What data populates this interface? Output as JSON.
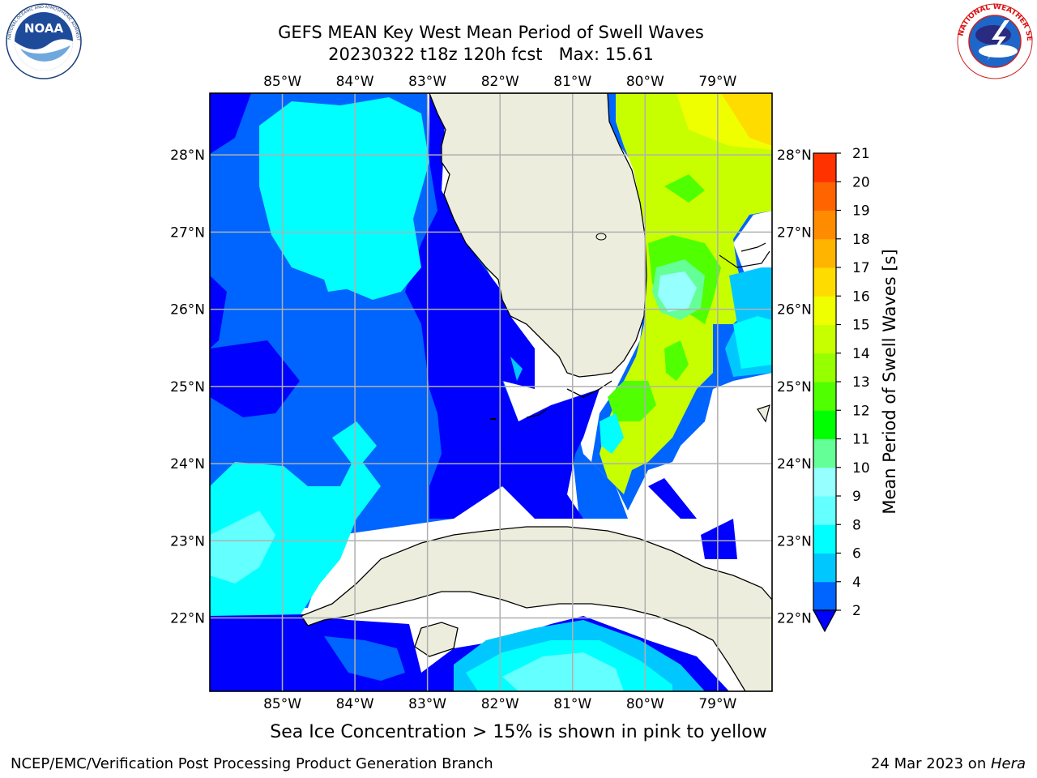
{
  "header": {
    "title": "GEFS MEAN Key West Mean Period of Swell Waves",
    "subtitle_date": "20230322 t18z 120h fcst",
    "subtitle_max": "Max: 15.61"
  },
  "logos": {
    "left": {
      "text": "NOAA",
      "icon": "noaa-logo-icon",
      "ring_text": "NATIONAL OCEANIC AND ATMOSPHERIC ADMINISTRATION · U.S. DEPARTMENT OF COMMERCE"
    },
    "right": {
      "icon": "nws-logo-icon",
      "ring_text": "NATIONAL WEATHER SERVICE"
    }
  },
  "map": {
    "lon_labels": [
      "85°W",
      "84°W",
      "83°W",
      "82°W",
      "81°W",
      "80°W",
      "79°W"
    ],
    "lat_labels": [
      "22°N",
      "23°N",
      "24°N",
      "25°N",
      "26°N",
      "27°N",
      "28°N"
    ],
    "lon_range": [
      -86.0,
      -78.25
    ],
    "lat_range": [
      21.05,
      28.8
    ],
    "colors": {
      "land": "#ededdd",
      "coast": "#000000",
      "grid": "#b0b0b0",
      "missing": "#ffffff"
    }
  },
  "colorbar": {
    "label": "Mean Period of Swell Waves [s]",
    "ticks": [
      "2",
      "4",
      "6",
      "8",
      "9",
      "10",
      "11",
      "12",
      "13",
      "14",
      "15",
      "16",
      "17",
      "18",
      "19",
      "20",
      "21"
    ],
    "colors": [
      "#0064ff",
      "#00c8ff",
      "#00ffff",
      "#64ffff",
      "#96ffff",
      "#64ff96",
      "#00ff00",
      "#50ff00",
      "#96ff00",
      "#c8ff00",
      "#f0ff00",
      "#ffdc00",
      "#ffb400",
      "#ff8c00",
      "#ff6400",
      "#ff3200"
    ],
    "under_color": "#0000ff"
  },
  "note": "Sea Ice Concentration > 15% is shown in pink to yellow",
  "footer": {
    "left": "NCEP/EMC/Verification Post Processing Product Generation Branch",
    "right_date": "24 Mar 2023 on ",
    "right_host": "Hera"
  }
}
